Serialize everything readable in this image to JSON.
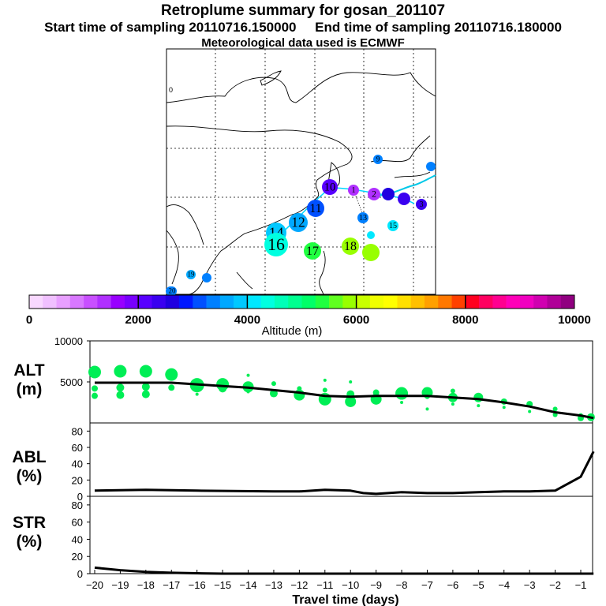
{
  "header": {
    "title": "Retroplume summary for gosan_201107",
    "start_label": "Start time of sampling 20110716.150000",
    "end_label": "End time of sampling 20110716.180000",
    "met_line": "Meteorological data used is ECMWF"
  },
  "colors": {
    "palette": [
      "#f8d8ff",
      "#f0c0ff",
      "#e8a0ff",
      "#d878ff",
      "#c850ff",
      "#b030ff",
      "#9800ff",
      "#7800ff",
      "#5800ff",
      "#3a00f0",
      "#2000e0",
      "#0018ff",
      "#0050ff",
      "#0080ff",
      "#00a8ff",
      "#00c8ff",
      "#00e8ff",
      "#00ffe0",
      "#00ffb8",
      "#00ff90",
      "#00ff68",
      "#20ff40",
      "#60ff20",
      "#98ff00",
      "#c8ff00",
      "#f0ff00",
      "#ffff00",
      "#ffe000",
      "#ffc000",
      "#ffa000",
      "#ff7800",
      "#ff4000",
      "#ff0020",
      "#ff0060",
      "#ff0090",
      "#ff00b8",
      "#f000c0",
      "#d000b0",
      "#b00098",
      "#900080"
    ],
    "plume_green": "#00ee55",
    "line": "#000000"
  },
  "chart_data": [
    {
      "type": "scatter",
      "name": "trajectory-map",
      "markers": [
        {
          "label": "0",
          "day": 0,
          "alt_m": 1200
        },
        {
          "label": "1",
          "day": 1,
          "alt_m": 1300
        },
        {
          "label": "2",
          "day": 2,
          "alt_m": 1400
        },
        {
          "label": "3",
          "day": 3,
          "alt_m": 2300
        },
        {
          "label": "9",
          "day": 9,
          "alt_m": 3400
        },
        {
          "label": "10",
          "day": 10,
          "alt_m": 2200
        },
        {
          "label": "11",
          "day": 11,
          "alt_m": 3200
        },
        {
          "label": "12",
          "day": 12,
          "alt_m": 3600
        },
        {
          "label": "13",
          "day": 13,
          "alt_m": 3300
        },
        {
          "label": "14",
          "day": 14,
          "alt_m": 3800
        },
        {
          "label": "15",
          "day": 15,
          "alt_m": 4000
        },
        {
          "label": "16",
          "day": 16,
          "alt_m": 4400
        },
        {
          "label": "17",
          "day": 17,
          "alt_m": 5400
        },
        {
          "label": "18",
          "day": 18,
          "alt_m": 5800
        },
        {
          "label": "19",
          "day": 19,
          "alt_m": 3500
        },
        {
          "label": "20",
          "day": 20,
          "alt_m": 3400
        }
      ]
    },
    {
      "type": "colorbar",
      "name": "altitude-colorbar",
      "xlabel": "Altitude (m)",
      "range": [
        0,
        10000
      ],
      "tick_labels": [
        "0",
        "2000",
        "4000",
        "6000",
        "8000",
        "10000"
      ],
      "tick_values": [
        0,
        2000,
        4000,
        6000,
        8000,
        10000
      ]
    },
    {
      "type": "line",
      "name": "ALT",
      "ylabel": "ALT\n(m)",
      "ylim": [
        0,
        10000
      ],
      "y_ticks": [
        5000,
        10000
      ],
      "y_tick_labels": [
        "5000",
        "10000"
      ],
      "x": [
        -20,
        -19,
        -18,
        -17,
        -16,
        -15,
        -14,
        -13,
        -12,
        -11,
        -10,
        -9,
        -8,
        -7,
        -6,
        -5,
        -4,
        -3,
        -2,
        -1,
        -0.5
      ],
      "values": [
        4900,
        4900,
        4900,
        4900,
        4700,
        4500,
        4300,
        4000,
        3700,
        3300,
        3200,
        3300,
        3300,
        3300,
        3100,
        2900,
        2500,
        2000,
        1300,
        900,
        600
      ],
      "plume": [
        {
          "day": -20,
          "alts": [
            6200,
            4200,
            3300
          ],
          "sizes": [
            8,
            4,
            4
          ]
        },
        {
          "day": -19,
          "alts": [
            6300,
            4300,
            3400
          ],
          "sizes": [
            8,
            5,
            5
          ]
        },
        {
          "day": -18,
          "alts": [
            6300,
            4400,
            3500
          ],
          "sizes": [
            8,
            5,
            5
          ]
        },
        {
          "day": -17,
          "alts": [
            5900,
            4300
          ],
          "sizes": [
            8,
            4
          ]
        },
        {
          "day": -16,
          "alts": [
            4600,
            3500
          ],
          "sizes": [
            9,
            2
          ]
        },
        {
          "day": -15,
          "alts": [
            4700,
            4200
          ],
          "sizes": [
            8,
            5
          ]
        },
        {
          "day": -14,
          "alts": [
            5800,
            4400,
            3800
          ],
          "sizes": [
            2,
            7,
            2
          ]
        },
        {
          "day": -13,
          "alts": [
            4800,
            3600
          ],
          "sizes": [
            3,
            5
          ]
        },
        {
          "day": -12,
          "alts": [
            4200,
            3400
          ],
          "sizes": [
            3,
            7
          ]
        },
        {
          "day": -11,
          "alts": [
            5200,
            4000,
            2900
          ],
          "sizes": [
            2,
            3,
            8
          ]
        },
        {
          "day": -10,
          "alts": [
            5000,
            3500,
            2600
          ],
          "sizes": [
            2,
            5,
            7
          ]
        },
        {
          "day": -9,
          "alts": [
            3700,
            2900
          ],
          "sizes": [
            4,
            7
          ]
        },
        {
          "day": -8,
          "alts": [
            3600,
            2500
          ],
          "sizes": [
            8,
            2
          ]
        },
        {
          "day": -7,
          "alts": [
            3700,
            3200,
            1700
          ],
          "sizes": [
            7,
            3,
            2
          ]
        },
        {
          "day": -6,
          "alts": [
            3900,
            3100,
            2300
          ],
          "sizes": [
            3,
            6,
            2
          ]
        },
        {
          "day": -5,
          "alts": [
            3100,
            2100
          ],
          "sizes": [
            6,
            2
          ]
        },
        {
          "day": -4,
          "alts": [
            2600,
            1900
          ],
          "sizes": [
            4,
            2
          ]
        },
        {
          "day": -3,
          "alts": [
            2300,
            1400
          ],
          "sizes": [
            4,
            2
          ]
        },
        {
          "day": -2,
          "alts": [
            1700,
            1000
          ],
          "sizes": [
            3,
            3
          ]
        },
        {
          "day": -1,
          "alts": [
            900,
            600
          ],
          "sizes": [
            3,
            4
          ]
        },
        {
          "day": -0.6,
          "alts": [
            700
          ],
          "sizes": [
            5
          ]
        }
      ]
    },
    {
      "type": "line",
      "name": "ABL",
      "ylabel": "ABL\n(%)",
      "ylim": [
        0,
        90
      ],
      "y_ticks": [
        0,
        20,
        40,
        60,
        80
      ],
      "y_tick_labels": [
        "0",
        "20",
        "40",
        "60",
        "80"
      ],
      "x": [
        -20,
        -18,
        -16,
        -13,
        -12,
        -11,
        -10,
        -9.5,
        -9,
        -8,
        -7,
        -6,
        -5,
        -4,
        -3,
        -2,
        -1,
        -0.5
      ],
      "values": [
        7,
        8,
        7,
        6,
        6,
        8,
        7,
        4,
        3,
        5,
        4,
        4,
        5,
        6,
        6,
        7,
        24,
        55
      ]
    },
    {
      "type": "line",
      "name": "STR",
      "ylabel": "STR\n(%)",
      "ylim": [
        0,
        90
      ],
      "y_ticks": [
        0,
        20,
        40,
        60,
        80
      ],
      "y_tick_labels": [
        "0",
        "20",
        "40",
        "60",
        "80"
      ],
      "x": [
        -20,
        -19,
        -18,
        -17,
        -16,
        -15,
        -12,
        -9,
        -6,
        -3,
        -0.5
      ],
      "values": [
        7,
        4,
        2,
        1,
        0.5,
        0,
        0,
        0,
        0,
        0,
        0
      ],
      "xlabel": "Travel time (days)",
      "x_tick_labels": [
        "−20",
        "−19",
        "−18",
        "−17",
        "−16",
        "−15",
        "−14",
        "−13",
        "−12",
        "−11",
        "−10",
        "−9",
        "−8",
        "−7",
        "−6",
        "−5",
        "−4",
        "−3",
        "−2",
        "−1"
      ]
    }
  ]
}
